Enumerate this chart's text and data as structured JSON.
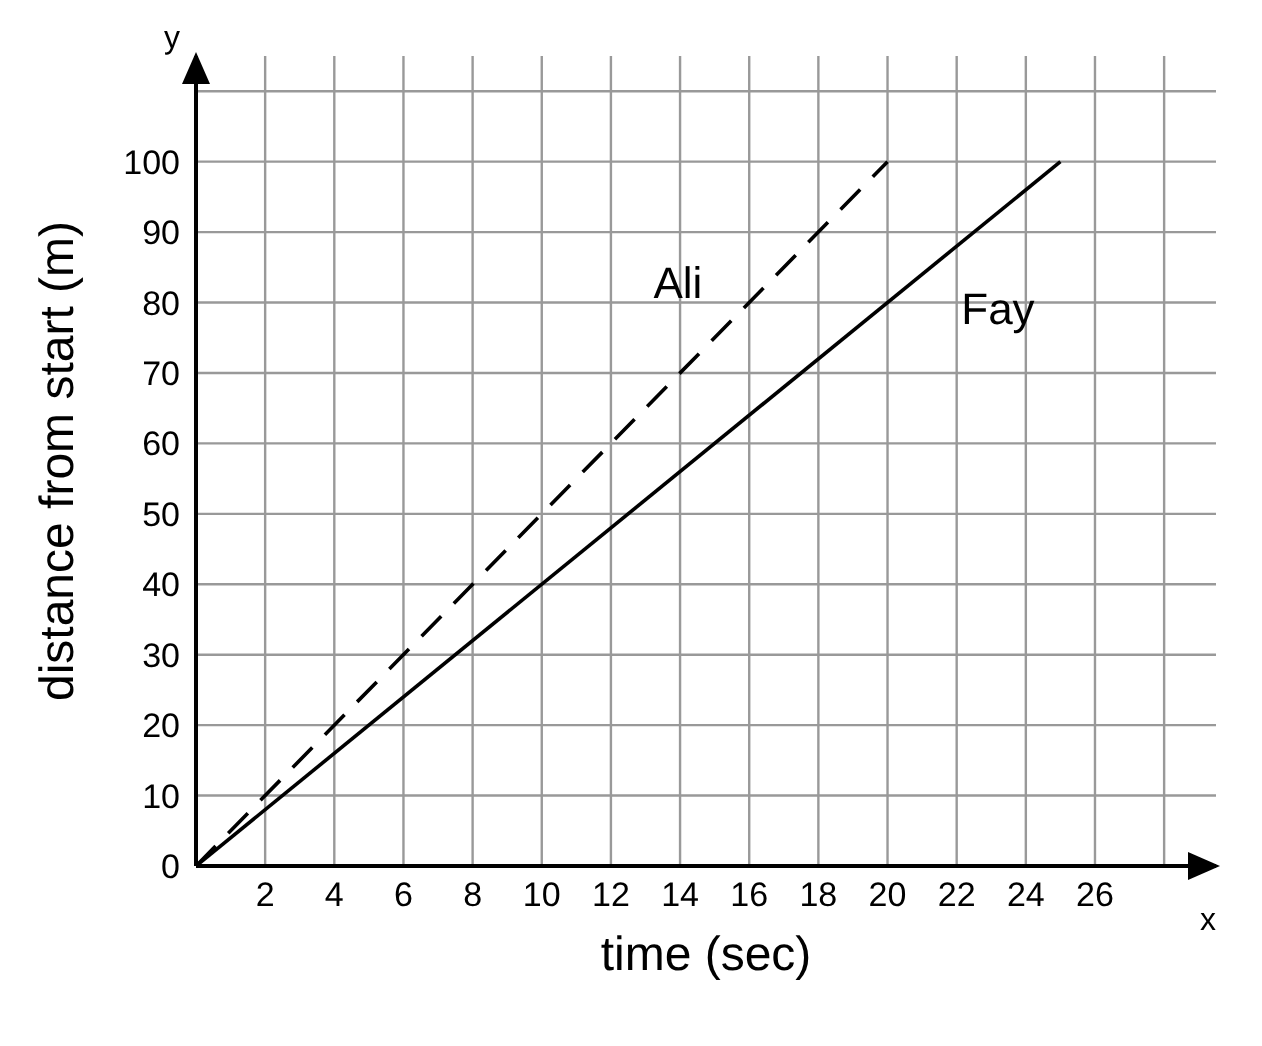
{
  "chart_data": {
    "type": "line",
    "xlabel": "time (sec)",
    "ylabel": "distance from start (m)",
    "series": [
      {
        "name": "Ali",
        "color": "#000000",
        "x": [
          0,
          20
        ],
        "values": [
          0,
          100
        ],
        "line_style": "dashed"
      },
      {
        "name": "Fay",
        "color": "#000000",
        "x": [
          0,
          25
        ],
        "values": [
          0,
          100
        ],
        "line_style": "solid"
      }
    ],
    "xlim": [
      0,
      29.5
    ],
    "ylim": [
      0,
      115
    ],
    "xticks": [
      2,
      4,
      6,
      8,
      10,
      12,
      14,
      16,
      18,
      20,
      22,
      24,
      26,
      {
        "value": 28,
        "label": null
      }
    ],
    "yticks": [
      {
        "value": 0,
        "label": "0"
      },
      10,
      20,
      30,
      40,
      50,
      60,
      70,
      80,
      90,
      100,
      {
        "value": 110,
        "label": null
      }
    ],
    "grid": true,
    "marker": "none",
    "annotations": [
      "x",
      "y"
    ]
  }
}
